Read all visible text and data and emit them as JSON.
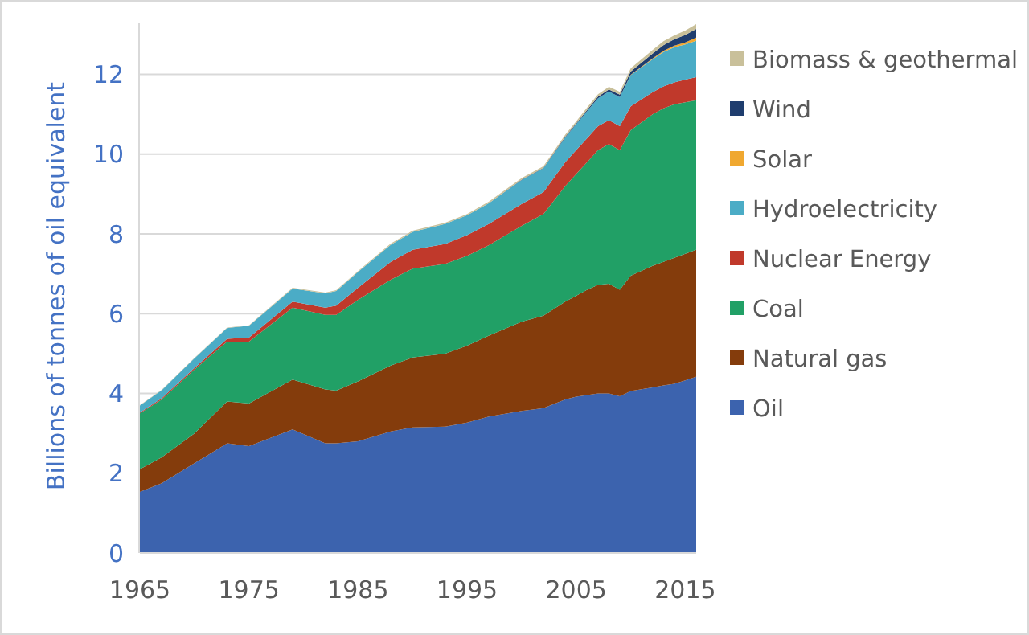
{
  "chart_data": {
    "type": "area",
    "stacked": true,
    "ylabel": "Billions of tonnes of oil equivalent",
    "x": [
      1965,
      1967,
      1970,
      1973,
      1975,
      1979,
      1982,
      1983,
      1985,
      1988,
      1990,
      1993,
      1995,
      1997,
      2000,
      2002,
      2004,
      2005,
      2006,
      2007,
      2008,
      2009,
      2010,
      2012,
      2013,
      2014,
      2015,
      2016
    ],
    "xlim": [
      1965,
      2016
    ],
    "xticks": [
      1965,
      1975,
      1985,
      1995,
      2005,
      2015
    ],
    "yticks": [
      0,
      2,
      4,
      6,
      8,
      10,
      12
    ],
    "ylim": [
      0,
      13.3
    ],
    "grid": "y",
    "legend": "right",
    "series": [
      {
        "name": "Oil",
        "color": "#3c63ae",
        "values": [
          1.53,
          1.75,
          2.25,
          2.75,
          2.68,
          3.1,
          2.75,
          2.75,
          2.8,
          3.05,
          3.15,
          3.17,
          3.27,
          3.42,
          3.56,
          3.63,
          3.85,
          3.92,
          3.96,
          4.0,
          4.0,
          3.93,
          4.06,
          4.15,
          4.2,
          4.24,
          4.33,
          4.42
        ]
      },
      {
        "name": "Natural gas",
        "color": "#843c0c",
        "values": [
          0.57,
          0.65,
          0.75,
          1.05,
          1.07,
          1.25,
          1.35,
          1.32,
          1.5,
          1.65,
          1.75,
          1.83,
          1.93,
          2.03,
          2.24,
          2.32,
          2.45,
          2.53,
          2.64,
          2.72,
          2.75,
          2.67,
          2.89,
          3.05,
          3.1,
          3.16,
          3.17,
          3.18
        ]
      },
      {
        "name": "Coal",
        "color": "#21a066",
        "values": [
          1.4,
          1.45,
          1.6,
          1.5,
          1.55,
          1.8,
          1.87,
          1.9,
          2.05,
          2.15,
          2.23,
          2.25,
          2.25,
          2.27,
          2.4,
          2.55,
          2.9,
          3.05,
          3.2,
          3.38,
          3.5,
          3.5,
          3.65,
          3.8,
          3.85,
          3.85,
          3.8,
          3.75
        ]
      },
      {
        "name": "Nuclear Energy",
        "color": "#c0392b",
        "values": [
          0.02,
          0.03,
          0.04,
          0.07,
          0.1,
          0.15,
          0.18,
          0.23,
          0.3,
          0.45,
          0.47,
          0.5,
          0.52,
          0.53,
          0.55,
          0.55,
          0.6,
          0.6,
          0.6,
          0.6,
          0.6,
          0.6,
          0.6,
          0.55,
          0.55,
          0.55,
          0.57,
          0.58
        ]
      },
      {
        "name": "Hydroelectricity",
        "color": "#4bacc6",
        "values": [
          0.18,
          0.2,
          0.24,
          0.27,
          0.3,
          0.33,
          0.36,
          0.37,
          0.4,
          0.43,
          0.45,
          0.5,
          0.5,
          0.52,
          0.6,
          0.6,
          0.62,
          0.65,
          0.68,
          0.7,
          0.72,
          0.73,
          0.78,
          0.83,
          0.86,
          0.88,
          0.88,
          0.91
        ]
      },
      {
        "name": "Solar",
        "color": "#f0a830",
        "values": [
          0,
          0,
          0,
          0,
          0,
          0,
          0,
          0,
          0,
          0,
          0,
          0,
          0,
          0,
          0,
          0,
          0,
          0,
          0,
          0,
          0,
          0,
          0.01,
          0.02,
          0.03,
          0.04,
          0.05,
          0.08
        ]
      },
      {
        "name": "Wind",
        "color": "#1f3d6e",
        "values": [
          0,
          0,
          0,
          0,
          0,
          0,
          0,
          0,
          0,
          0,
          0,
          0,
          0,
          0,
          0.01,
          0.01,
          0.02,
          0.02,
          0.03,
          0.04,
          0.05,
          0.06,
          0.08,
          0.12,
          0.14,
          0.16,
          0.19,
          0.22
        ]
      },
      {
        "name": "Biomass & geothermal",
        "color": "#c9c09a",
        "values": [
          0.01,
          0.01,
          0.01,
          0.01,
          0.01,
          0.02,
          0.02,
          0.02,
          0.02,
          0.03,
          0.03,
          0.03,
          0.03,
          0.04,
          0.04,
          0.04,
          0.05,
          0.05,
          0.06,
          0.06,
          0.07,
          0.07,
          0.08,
          0.09,
          0.1,
          0.1,
          0.11,
          0.12
        ]
      }
    ]
  }
}
